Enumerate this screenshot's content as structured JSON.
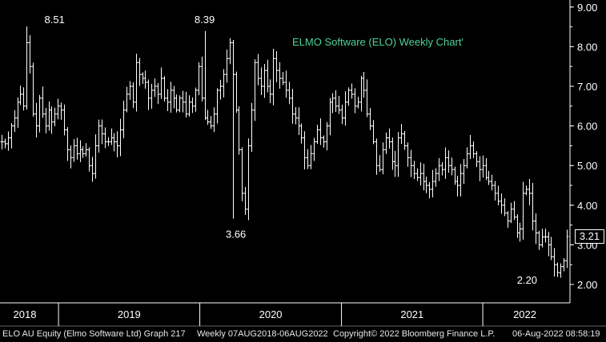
{
  "chart_data": {
    "type": "ohlc-bar",
    "title": "ELMO Software (ELO) Weekly Chart'",
    "title_color": "#4ed39a",
    "background": "#000000",
    "bar_color": "#ffffff",
    "y_ticks": [
      "2.00",
      "3.00",
      "4.00",
      "5.00",
      "6.00",
      "7.00",
      "8.00",
      "9.00"
    ],
    "ylim": [
      1.5,
      9.0
    ],
    "x_ticks": [
      "2018",
      "2019",
      "2020",
      "2021",
      "2022"
    ],
    "x_range": [
      "2018-08-07",
      "2022-08-06"
    ],
    "annotations": [
      {
        "text": "8.51",
        "date": "2018-10-08",
        "value": 8.51
      },
      {
        "text": "8.39",
        "date": "2020-01-13",
        "value": 8.39
      },
      {
        "text": "3.66",
        "date": "2020-03-23",
        "value": 3.66
      },
      {
        "text": "2.20",
        "date": "2022-07-04",
        "value": 2.2
      }
    ],
    "last_price": "3.21",
    "series": [
      {
        "frequency": "weekly",
        "start": "2018-08-07",
        "closes": [
          5.6,
          5.55,
          5.7,
          6.0,
          6.2,
          6.6,
          6.8,
          6.5,
          8.1,
          7.5,
          6.3,
          6.0,
          6.7,
          6.3,
          6.0,
          6.4,
          6.1,
          6.3,
          6.5,
          6.4,
          5.9,
          5.4,
          5.2,
          5.5,
          5.3,
          5.4,
          5.3,
          5.4,
          5.0,
          4.8,
          5.5,
          6.0,
          5.8,
          5.6,
          5.6,
          5.7,
          5.6,
          5.5,
          5.9,
          6.4,
          6.8,
          7.0,
          6.6,
          7.6,
          7.3,
          7.2,
          7.1,
          6.7,
          6.9,
          7.0,
          6.8,
          7.2,
          6.7,
          6.6,
          6.9,
          6.7,
          6.4,
          6.7,
          6.6,
          6.3,
          6.6,
          6.5,
          6.9,
          7.5,
          6.7,
          6.2,
          6.1,
          6.0,
          6.3,
          6.9,
          7.0,
          7.3,
          7.7,
          8.1,
          7.3,
          6.4,
          5.4,
          4.3,
          3.9,
          5.5,
          6.4,
          7.6,
          7.2,
          7.0,
          7.4,
          7.0,
          6.8,
          7.7,
          7.4,
          7.2,
          7.1,
          6.9,
          6.7,
          6.3,
          6.2,
          6.0,
          5.7,
          5.2,
          5.0,
          5.3,
          5.6,
          5.9,
          5.7,
          5.6,
          6.0,
          6.6,
          6.7,
          6.5,
          6.4,
          6.2,
          6.6,
          6.9,
          6.8,
          6.5,
          6.6,
          7.2,
          6.9,
          6.3,
          6.0,
          5.6,
          5.0,
          4.9,
          5.4,
          5.7,
          5.6,
          5.1,
          5.0,
          5.7,
          5.8,
          5.5,
          5.2,
          5.0,
          4.8,
          4.7,
          4.8,
          4.6,
          4.5,
          4.4,
          4.6,
          4.8,
          5.0,
          4.9,
          5.2,
          5.0,
          4.9,
          4.6,
          4.5,
          4.8,
          5.0,
          5.3,
          5.5,
          5.3,
          5.1,
          4.9,
          5.0,
          4.7,
          4.6,
          4.5,
          4.3,
          4.1,
          4.0,
          3.8,
          3.6,
          3.9,
          3.7,
          3.3,
          3.4,
          4.3,
          4.4,
          4.3,
          3.6,
          3.3,
          3.0,
          3.2,
          3.2,
          3.0,
          2.7,
          2.5,
          2.3,
          2.45,
          2.6,
          3.21
        ]
      }
    ]
  },
  "footer": {
    "ticker": "ELO AU Equity (Elmo Software Ltd) Graph 217",
    "period": "Weekly 07AUG2018-06AUG2022",
    "copyright": "Copyright© 2022 Bloomberg Finance L.P.",
    "timestamp": "06-Aug-2022 08:58:19"
  }
}
